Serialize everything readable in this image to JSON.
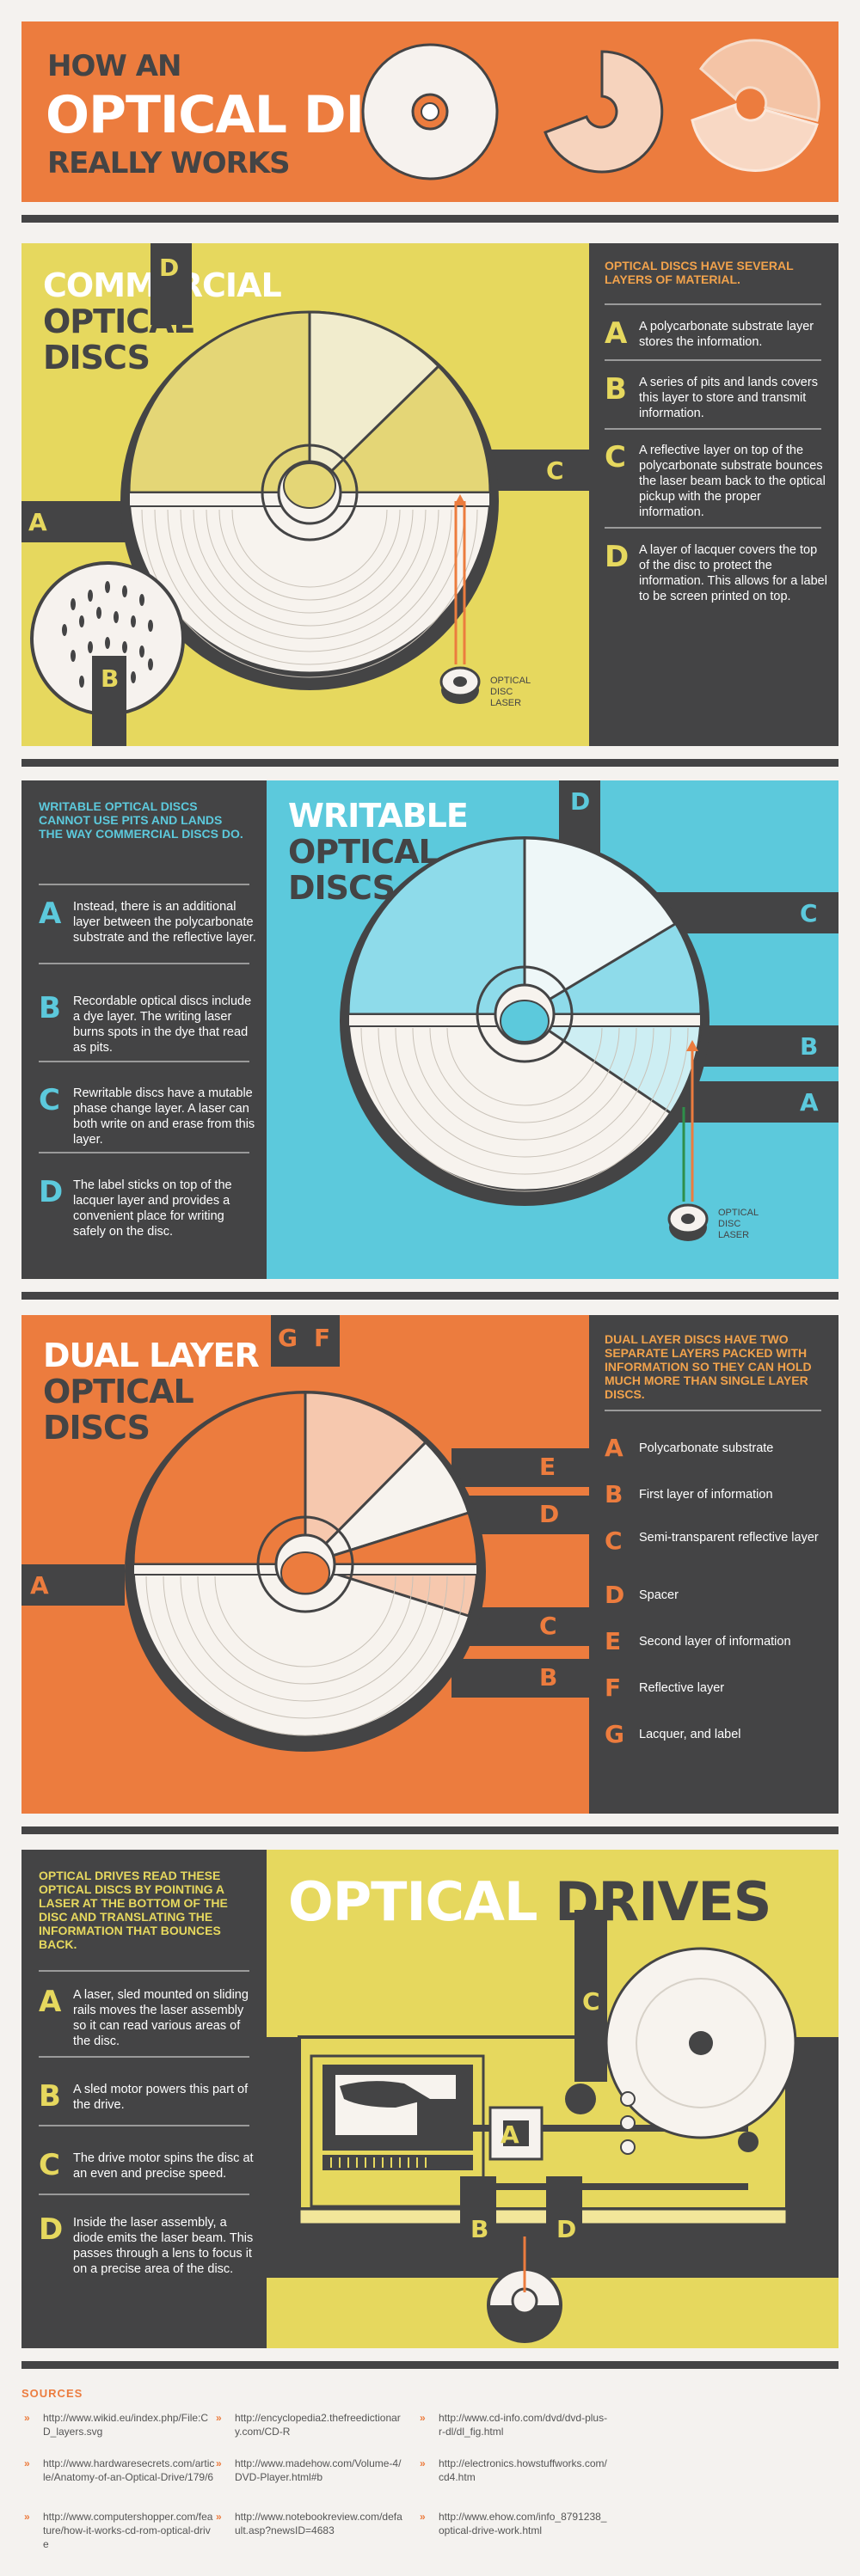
{
  "header": {
    "line1": "HOW AN",
    "line2": "OPTICAL DISC",
    "line3": "REALLY WORKS"
  },
  "commercial": {
    "title": [
      "COMMERCIAL",
      "OPTICAL",
      "DISCS"
    ],
    "heading": "OPTICAL DISCS HAVE SEVERAL LAYERS OF MATERIAL.",
    "items": [
      {
        "letter": "A",
        "text": "A polycarbonate substrate layer stores the information."
      },
      {
        "letter": "B",
        "text": "A series of pits and lands covers this layer to store and transmit information."
      },
      {
        "letter": "C",
        "text": "A reflective layer on top of the polycarbonate substrate bounces the laser beam back to the optical pickup with the proper information."
      },
      {
        "letter": "D",
        "text": "A layer of lacquer covers the top of the disc to protect the information. This allows for a label to be screen printed on top."
      }
    ],
    "laser_label": [
      "OPTICAL",
      "DISC",
      "LASER"
    ],
    "tabs": {
      "a": "A",
      "b": "B",
      "c": "C",
      "d": "D"
    }
  },
  "writable": {
    "title": [
      "WRITABLE",
      "OPTICAL",
      "DISCS"
    ],
    "heading": "WRITABLE OPTICAL DISCS CANNOT USE PITS AND LANDS THE WAY COMMERCIAL DISCS DO.",
    "items": [
      {
        "letter": "A",
        "text": "Instead, there is an additional layer between the polycarbonate substrate and the reflective layer."
      },
      {
        "letter": "B",
        "text": "Recordable optical discs include a dye layer. The writing laser burns spots in the dye that read as pits."
      },
      {
        "letter": "C",
        "text": "Rewritable discs have a mutable phase change layer. A laser can both write on and erase from this layer."
      },
      {
        "letter": "D",
        "text": "The label sticks on top of the lacquer layer and provides a convenient place for writing safely on the disc."
      }
    ],
    "laser_label": [
      "OPTICAL",
      "DISC",
      "LASER"
    ],
    "tabs": {
      "a": "A",
      "b": "B",
      "c": "C",
      "d": "D"
    }
  },
  "dual": {
    "title": [
      "DUAL LAYER",
      "OPTICAL",
      "DISCS"
    ],
    "heading": "DUAL LAYER DISCS HAVE TWO SEPARATE LAYERS PACKED WITH INFORMATION SO THEY CAN HOLD MUCH MORE THAN SINGLE LAYER DISCS.",
    "items": [
      {
        "letter": "A",
        "text": "Polycarbonate substrate"
      },
      {
        "letter": "B",
        "text": "First layer of information"
      },
      {
        "letter": "C",
        "text": "Semi-transparent reflective layer"
      },
      {
        "letter": "D",
        "text": "Spacer"
      },
      {
        "letter": "E",
        "text": "Second layer of information"
      },
      {
        "letter": "F",
        "text": "Reflective layer"
      },
      {
        "letter": "G",
        "text": "Lacquer, and label"
      }
    ],
    "tabs": {
      "a": "A",
      "b": "B",
      "c": "C",
      "d": "D",
      "e": "E",
      "f": "F",
      "g": "G"
    }
  },
  "drives": {
    "title_a": "OPTICAL",
    "title_b": "DRIVES",
    "heading": "OPTICAL DRIVES READ THESE OPTICAL DISCS BY POINTING A LASER AT THE BOTTOM OF THE DISC AND TRANSLATING THE INFORMATION THAT BOUNCES BACK.",
    "items": [
      {
        "letter": "A",
        "text": "A laser, sled mounted on sliding rails moves the laser assembly so it can read various areas of the disc."
      },
      {
        "letter": "B",
        "text": "A sled motor powers this part of the drive."
      },
      {
        "letter": "C",
        "text": "The drive motor spins the disc at an even and precise speed."
      },
      {
        "letter": "D",
        "text": "Inside the laser assembly, a diode emits the laser beam. This passes through a lens to focus it on a precise area of the disc."
      }
    ],
    "tabs": {
      "a": "A",
      "b": "B",
      "c": "C",
      "d": "D"
    }
  },
  "sources": {
    "label": "SOURCES",
    "links": [
      "http://www.wikid.eu/index.php/File:CD_layers.svg",
      "http://encyclopedia2.thefreedictionary.com/CD-R",
      "http://www.cd-info.com/dvd/dvd-plus-r-dl/dl_fig.html",
      "http://www.hardwaresecrets.com/article/Anatomy-of-an-Optical-Drive/179/6",
      "http://www.madehow.com/Volume-4/DVD-Player.html#b",
      "http://electronics.howstuffworks.com/cd4.htm",
      "http://www.computershopper.com/feature/how-it-works-cd-rom-optical-drive",
      "http://www.notebookreview.com/default.asp?newsID=4683",
      "http://www.ehow.com/info_8791238_optical-drive-work.html"
    ]
  },
  "colors": {
    "orange": "#ec7c3e",
    "yellow": "#e6d85e",
    "cyan": "#5cc9dc",
    "dark": "#444445",
    "text_orange": "#f1a24c"
  }
}
